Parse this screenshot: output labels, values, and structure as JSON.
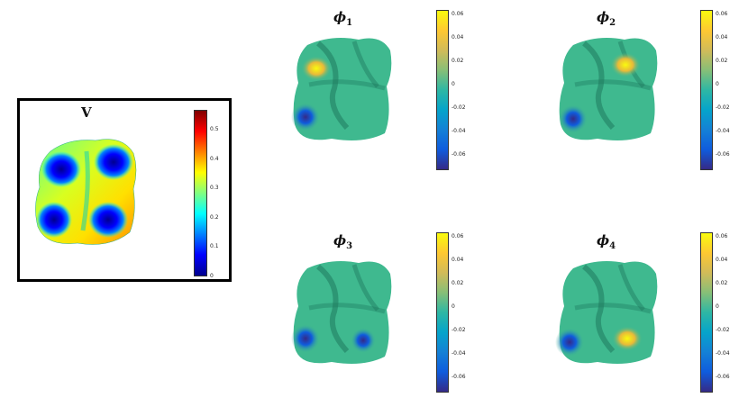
{
  "colors": {
    "jet": [
      "#00008f",
      "#0000ff",
      "#0080ff",
      "#00ffff",
      "#80ff80",
      "#ffff00",
      "#ff8000",
      "#ff0000",
      "#800000"
    ],
    "parula": [
      "#352a87",
      "#0f5cdd",
      "#1481d6",
      "#06a4ca",
      "#2eb7a4",
      "#87bf77",
      "#d1bb59",
      "#fec832",
      "#f9fb0e"
    ],
    "surface_base": "#3fb98f"
  },
  "panel_v": {
    "title": "V",
    "colorbar_ticks": [
      "0.5",
      "0.4",
      "0.3",
      "0.2",
      "0.1",
      "0"
    ]
  },
  "panels_phi": [
    {
      "symbol": "ϕ",
      "index": "1",
      "ticks": [
        "0.06",
        "0.04",
        "0.02",
        "0",
        "-0.02",
        "-0.04",
        "-0.06"
      ]
    },
    {
      "symbol": "ϕ",
      "index": "2",
      "ticks": [
        "0.06",
        "0.04",
        "0.02",
        "0",
        "-0.02",
        "-0.04",
        "-0.06"
      ]
    },
    {
      "symbol": "ϕ",
      "index": "3",
      "ticks": [
        "0.06",
        "0.04",
        "0.02",
        "0",
        "-0.02",
        "-0.04",
        "-0.06"
      ]
    },
    {
      "symbol": "ϕ",
      "index": "4",
      "ticks": [
        "0.06",
        "0.04",
        "0.02",
        "0",
        "-0.02",
        "-0.04",
        "-0.06"
      ]
    }
  ]
}
